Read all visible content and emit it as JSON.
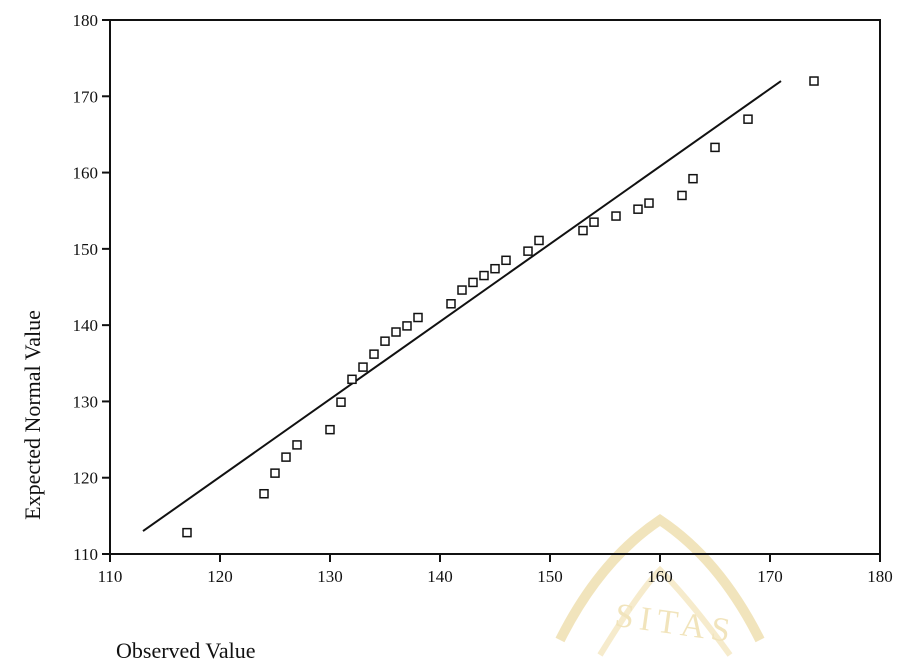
{
  "chart_data": {
    "type": "scatter",
    "title": "",
    "xlabel": "Observed Value",
    "ylabel": "Expected Normal Value",
    "xlim": [
      110,
      180
    ],
    "ylim": [
      110,
      180
    ],
    "x_ticks": [
      110,
      120,
      130,
      140,
      150,
      160,
      170,
      180
    ],
    "y_ticks": [
      110,
      120,
      130,
      140,
      150,
      160,
      170,
      180
    ],
    "grid": false,
    "legend": "none",
    "series": [
      {
        "x": [
          117,
          124,
          125,
          126,
          127,
          130,
          131,
          132,
          133,
          134,
          135,
          136,
          137,
          138,
          141,
          142,
          143,
          144,
          145,
          146,
          148,
          149,
          153,
          154,
          156,
          158,
          159,
          162,
          163,
          165,
          168,
          174
        ],
        "y": [
          112.8,
          117.9,
          120.6,
          122.7,
          124.3,
          126.3,
          129.9,
          132.9,
          134.5,
          136.2,
          137.9,
          139.1,
          139.9,
          141.0,
          142.8,
          144.6,
          145.6,
          146.5,
          147.4,
          148.5,
          149.7,
          151.1,
          152.4,
          153.5,
          154.3,
          155.2,
          156.0,
          157.0,
          159.2,
          163.3,
          167.0,
          172.0
        ]
      }
    ],
    "reference_line": {
      "x": [
        113,
        171
      ],
      "y": [
        113,
        172
      ]
    }
  },
  "colors": {
    "ink": "#111111",
    "watermark": "#e7cf86"
  },
  "watermark": {
    "text": "SITAS"
  }
}
